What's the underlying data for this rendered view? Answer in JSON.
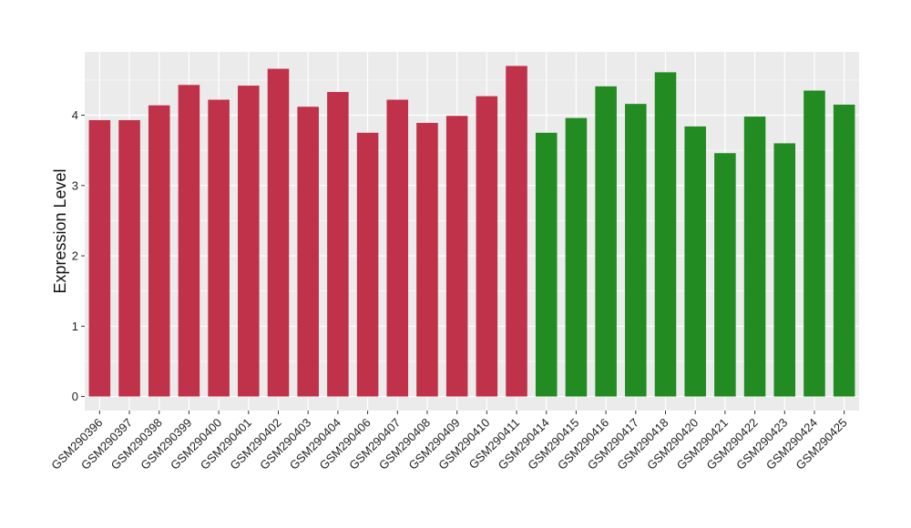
{
  "chart_data": {
    "type": "bar",
    "title": "",
    "xlabel": "",
    "ylabel": "Expression Level",
    "ylim": [
      -0.2,
      4.9
    ],
    "yticks": [
      0,
      1,
      2,
      3,
      4
    ],
    "grid": true,
    "legend": "none",
    "categories": [
      "GSM290396",
      "GSM290397",
      "GSM290398",
      "GSM290399",
      "GSM290400",
      "GSM290401",
      "GSM290402",
      "GSM290403",
      "GSM290404",
      "GSM290406",
      "GSM290407",
      "GSM290408",
      "GSM290409",
      "GSM290410",
      "GSM290411",
      "GSM290414",
      "GSM290415",
      "GSM290416",
      "GSM290417",
      "GSM290418",
      "GSM290420",
      "GSM290421",
      "GSM290422",
      "GSM290423",
      "GSM290424",
      "GSM290425"
    ],
    "values": [
      3.93,
      3.93,
      4.14,
      4.43,
      4.22,
      4.42,
      4.66,
      4.12,
      4.33,
      3.75,
      4.22,
      3.89,
      3.99,
      4.27,
      4.7,
      3.75,
      3.96,
      4.41,
      4.16,
      4.61,
      3.84,
      3.46,
      3.98,
      3.6,
      4.35,
      4.15
    ],
    "group_index": [
      0,
      0,
      0,
      0,
      0,
      0,
      0,
      0,
      0,
      0,
      0,
      0,
      0,
      0,
      0,
      1,
      1,
      1,
      1,
      1,
      1,
      1,
      1,
      1,
      1,
      1
    ],
    "group_colors": [
      "#c0314a",
      "#228b22"
    ],
    "panel_background": "#ebebeb",
    "gridline_color": "#ffffff"
  }
}
